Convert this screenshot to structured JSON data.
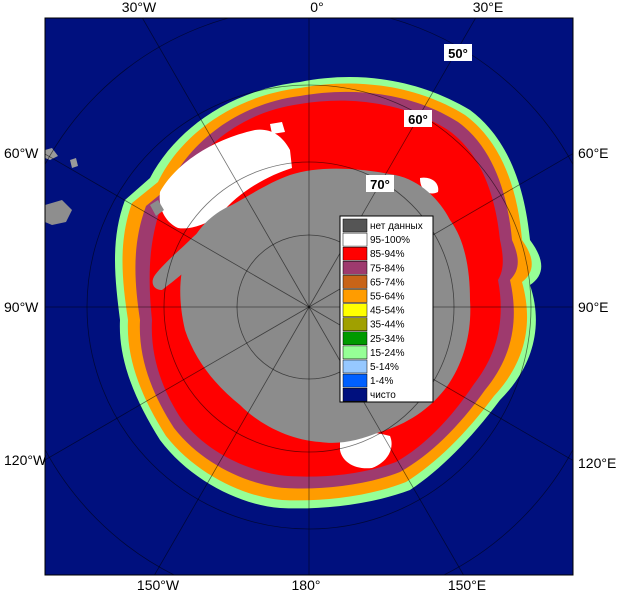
{
  "map": {
    "colors": {
      "ocean": "#00107e",
      "land": "#9a9a9a",
      "continent": "#8c8c8c",
      "nodata": "#555555",
      "grid": "#8a8a9a"
    },
    "lon_labels": {
      "top": [
        "30°W",
        "0°",
        "30°E"
      ],
      "left": [
        "60°W",
        "90°W",
        "120°W"
      ],
      "right": [
        "60°E",
        "90°E",
        "120°E"
      ],
      "bottom": [
        "150°W",
        "180°",
        "150°E"
      ]
    },
    "lat_labels": [
      "50°",
      "60°",
      "70°"
    ]
  },
  "legend": {
    "items": [
      {
        "label": "нет данных",
        "color": "#555555"
      },
      {
        "label": "95-100%",
        "color": "#ffffff"
      },
      {
        "label": "85-94%",
        "color": "#ff0000"
      },
      {
        "label": "75-84%",
        "color": "#9e3a6e"
      },
      {
        "label": "65-74%",
        "color": "#c86418"
      },
      {
        "label": "55-64%",
        "color": "#ff9c00"
      },
      {
        "label": "45-54%",
        "color": "#ffff00"
      },
      {
        "label": "35-44%",
        "color": "#a0a000"
      },
      {
        "label": "25-34%",
        "color": "#009a00"
      },
      {
        "label": "15-24%",
        "color": "#96ff96"
      },
      {
        "label": "5-14%",
        "color": "#96c8ff"
      },
      {
        "label": "1-4%",
        "color": "#0060ff"
      },
      {
        "label": "чисто",
        "color": "#00107e"
      }
    ]
  }
}
